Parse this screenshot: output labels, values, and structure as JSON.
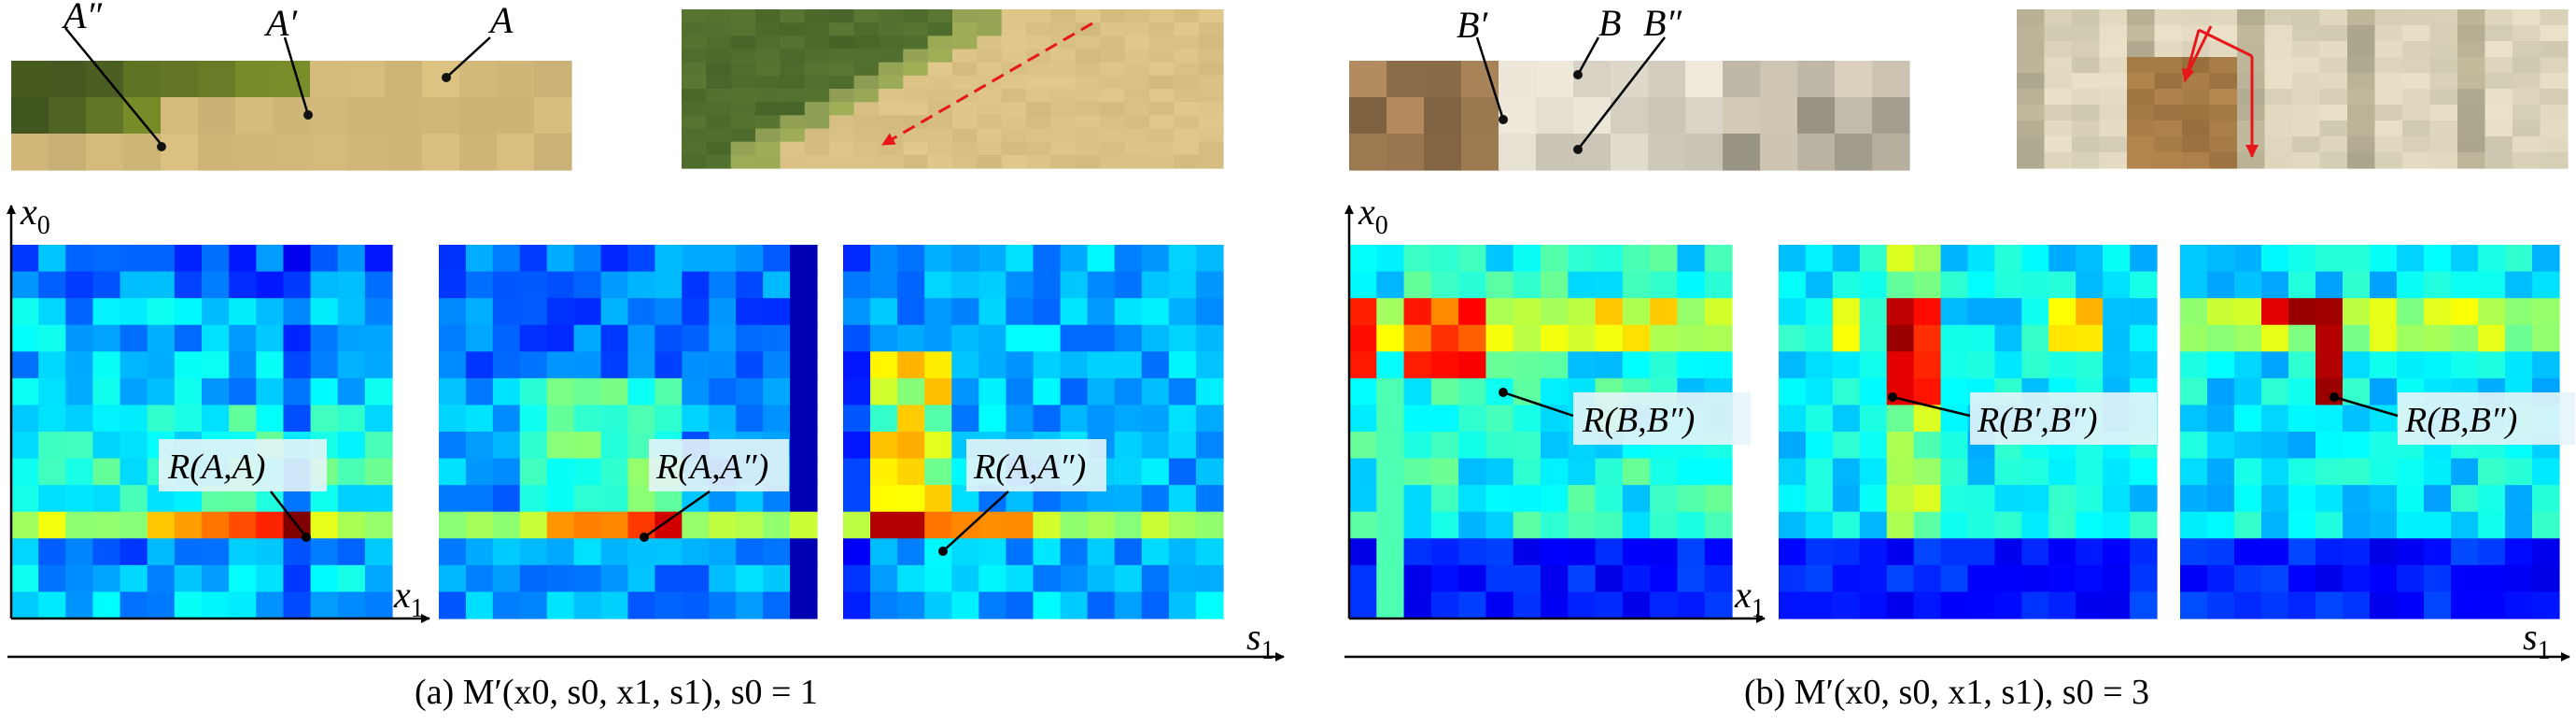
{
  "colors": {
    "arrow": "#e8161b",
    "label_box": "#e6f4f8"
  },
  "panel_a": {
    "point_labels": {
      "a": "A",
      "a_prime": "A′",
      "a_double": "A″"
    },
    "axes": {
      "vertical": "x",
      "vertical_sub": "0",
      "horizontal": "x",
      "horizontal_sub": "1",
      "global": "s",
      "global_sub": "1"
    },
    "heatmap_labels": [
      "R(A,A)",
      "R(A,A″)",
      "R(A,A″)"
    ],
    "caption": "(a) M′(x0, s0, x1, s1), s0 = 1"
  },
  "panel_b": {
    "point_labels": {
      "b_prime": "B′",
      "b": "B",
      "b_double": "B″"
    },
    "axes": {
      "vertical": "x",
      "vertical_sub": "0",
      "horizontal": "x",
      "horizontal_sub": "1",
      "global": "s",
      "global_sub": "1"
    },
    "heatmap_labels": [
      "R(B,B″)",
      "R(B′,B″)",
      "R(B,B″)"
    ],
    "caption": "(b) M′(x0, s0, x1, s1), s0 = 3"
  }
}
